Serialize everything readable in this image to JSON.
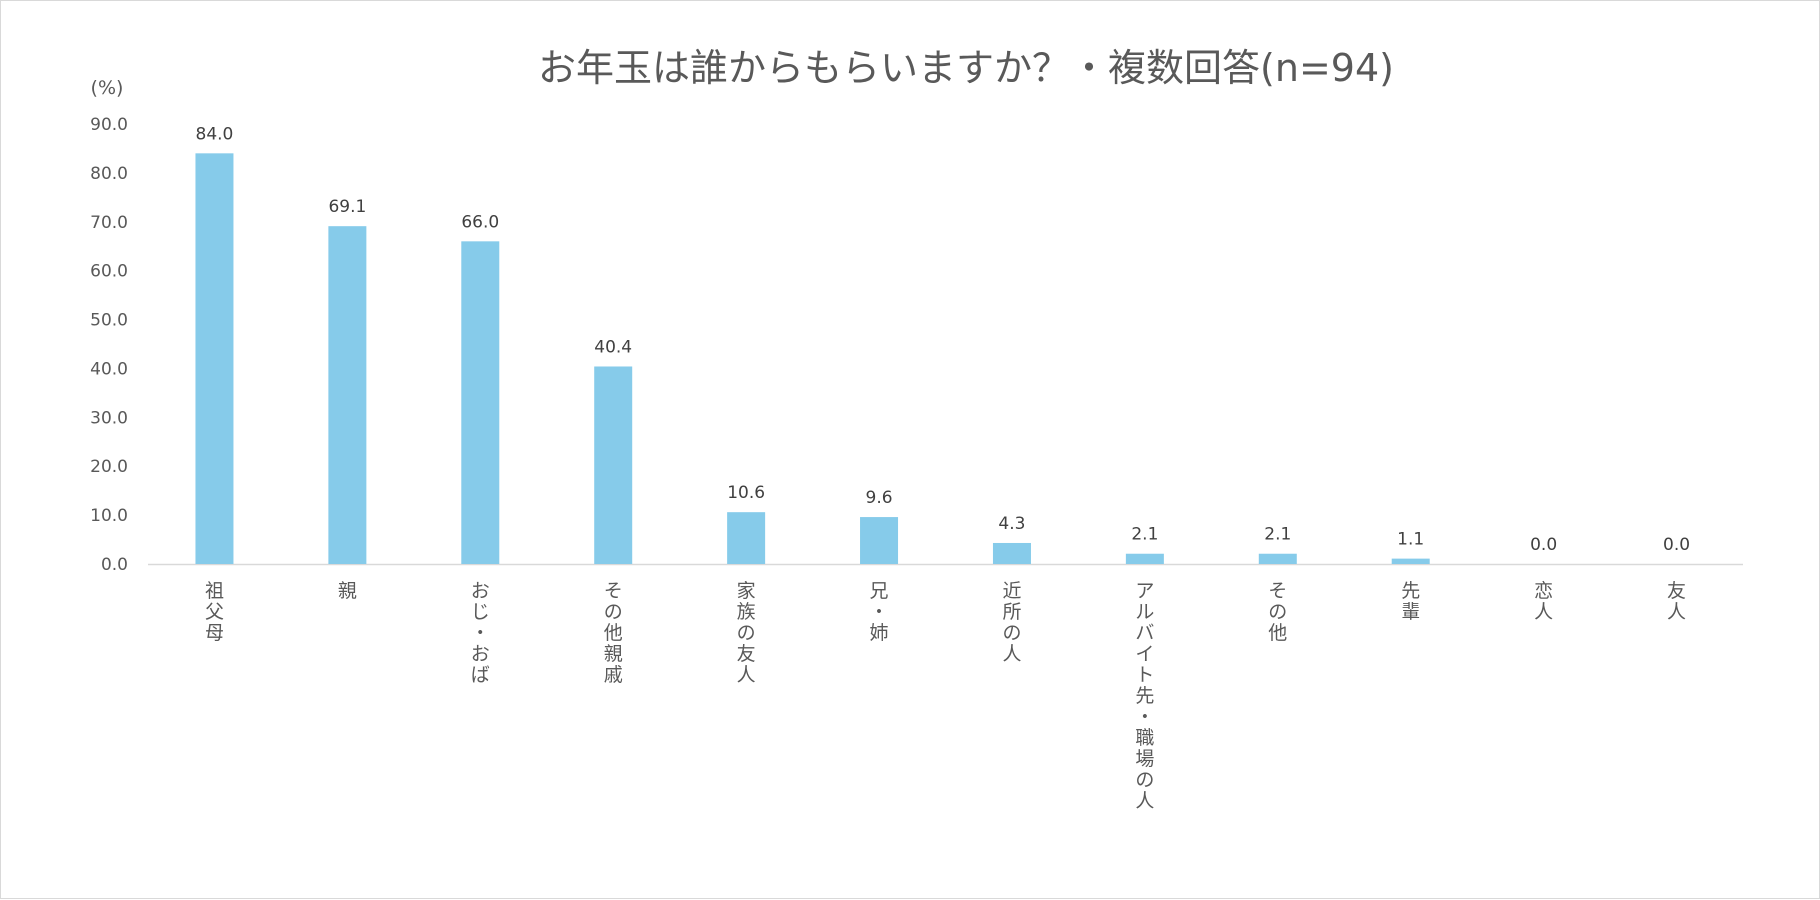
{
  "chart_data": {
    "type": "bar",
    "title": "お年玉は誰からもらいますか？・複数回答(n=94)",
    "ylabel": "(%)",
    "xlabel": "",
    "ylim": [
      0,
      90
    ],
    "yticks": [
      "0.0",
      "10.0",
      "20.0",
      "30.0",
      "40.0",
      "50.0",
      "60.0",
      "70.0",
      "80.0",
      "90.0"
    ],
    "grid": false,
    "legend": "none",
    "categories": [
      "祖父母",
      "親",
      "おじ・おば",
      "その他親戚",
      "家族の友人",
      "兄・姉",
      "近所の人",
      "アルバイト先・職場の人",
      "その他",
      "先輩",
      "恋人",
      "友人"
    ],
    "values": [
      84.0,
      69.1,
      66.0,
      40.4,
      10.6,
      9.6,
      4.3,
      2.1,
      2.1,
      1.1,
      0.0,
      0.0
    ],
    "value_labels": [
      "84.0",
      "69.1",
      "66.0",
      "40.4",
      "10.6",
      "9.6",
      "4.3",
      "2.1",
      "2.1",
      "1.1",
      "0.0",
      "0.0"
    ],
    "colors": {
      "bar": "#86CBEA",
      "text": "#595959",
      "axis": "#D9D9D9"
    }
  }
}
